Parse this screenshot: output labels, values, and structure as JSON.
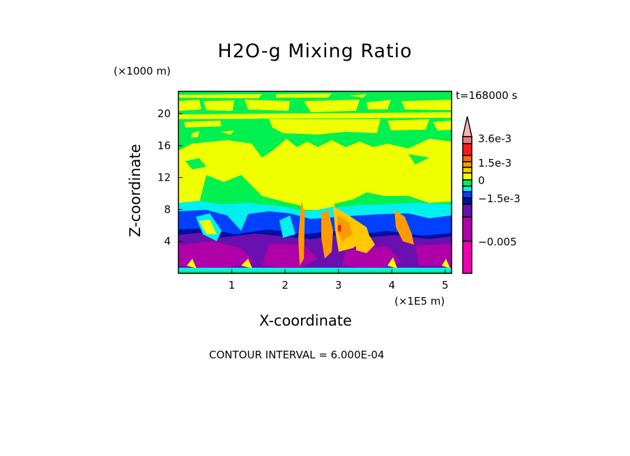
{
  "chart_data": {
    "type": "heatmap",
    "subtype": "filled-contour",
    "title": "H2O-g Mixing Ratio",
    "xlabel": "X-coordinate",
    "ylabel": "Z-coordinate",
    "x_unit": "(×1E5 m)",
    "y_unit": "(×1000 m)",
    "xlim": [
      0,
      5.12
    ],
    "ylim": [
      0,
      22.8
    ],
    "x_ticks": [
      1,
      2,
      3,
      4,
      5
    ],
    "y_ticks": [
      4,
      8,
      12,
      16,
      20
    ],
    "time_label": "t=168000 s",
    "contour_interval_label": "CONTOUR INTERVAL = 6.000E-04",
    "colorbar": {
      "colors_top_to_bottom": [
        "#ffb4b4",
        "#f07878",
        "#ff1a1a",
        "#ff6a00",
        "#ff9a00",
        "#ffc800",
        "#f0ff00",
        "#00f050",
        "#00f0f0",
        "#0040ff",
        "#0010a0",
        "#6a10b0",
        "#b000a8",
        "#f000b0"
      ],
      "labels": [
        {
          "text": "3.6e-3",
          "value": 0.0036
        },
        {
          "text": "1.5e-3",
          "value": 0.0015
        },
        {
          "text": "0",
          "value": 0
        },
        {
          "text": "−1.5e-3",
          "value": -0.0015
        },
        {
          "text": "−0.005",
          "value": -0.005
        }
      ]
    }
  }
}
